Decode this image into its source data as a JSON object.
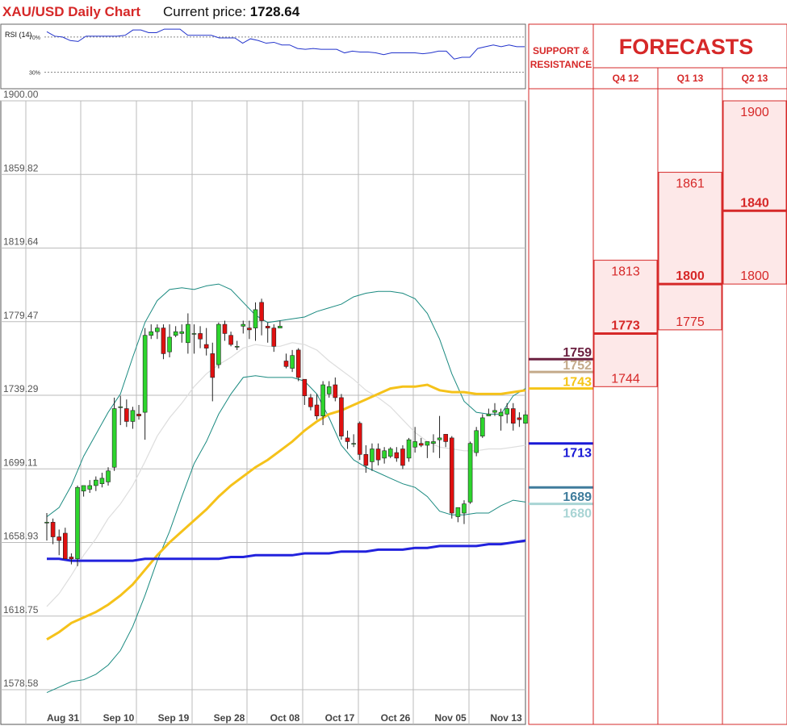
{
  "header": {
    "title": "XAU/USD Daily Chart",
    "price_label": "Current price:",
    "price_value": "1728.64"
  },
  "rsi": {
    "label": "RSI (14)",
    "upper_label": "70%",
    "lower_label": "30%",
    "upper": 70,
    "lower": 30,
    "values": [
      76,
      71,
      70,
      66,
      65,
      71,
      71,
      71,
      71,
      71,
      72,
      78,
      78,
      75,
      75,
      79,
      79,
      79,
      72,
      72,
      72,
      72,
      69,
      69,
      69,
      63,
      68,
      66,
      63,
      64,
      61,
      61,
      57,
      56,
      57,
      56,
      56,
      56,
      52,
      54,
      53,
      53,
      52,
      50,
      52,
      52,
      52,
      52,
      51,
      52,
      54,
      54,
      45,
      47,
      47,
      57,
      59,
      61,
      59,
      61,
      59,
      59
    ]
  },
  "chart_data": {
    "type": "candlestick",
    "title": "XAU/USD Daily Chart",
    "xlabel": "",
    "ylabel": "",
    "ylim": [
      1578.58,
      1900.0
    ],
    "y_ticks": [
      "1900.00",
      "1859.82",
      "1819.64",
      "1779.47",
      "1739.29",
      "1699.11",
      "1658.93",
      "1618.75",
      "1578.58"
    ],
    "x_ticks": [
      "Aug 31",
      "Sep 10",
      "Sep 19",
      "Sep 28",
      "Oct 08",
      "Oct 17",
      "Oct 26",
      "Nov 05",
      "Nov 13"
    ],
    "grid": true,
    "candles": [
      {
        "o": 1670,
        "h": 1675,
        "l": 1660,
        "c": 1670
      },
      {
        "o": 1670,
        "h": 1672,
        "l": 1658,
        "c": 1662
      },
      {
        "o": 1662,
        "h": 1666,
        "l": 1652,
        "c": 1660
      },
      {
        "o": 1664,
        "h": 1667,
        "l": 1650,
        "c": 1650
      },
      {
        "o": 1651,
        "h": 1653,
        "l": 1647,
        "c": 1650
      },
      {
        "o": 1650,
        "h": 1690,
        "l": 1646,
        "c": 1689
      },
      {
        "o": 1687,
        "h": 1690,
        "l": 1684,
        "c": 1690
      },
      {
        "o": 1688,
        "h": 1693,
        "l": 1686,
        "c": 1690
      },
      {
        "o": 1690,
        "h": 1695,
        "l": 1687,
        "c": 1693
      },
      {
        "o": 1691,
        "h": 1697,
        "l": 1689,
        "c": 1694
      },
      {
        "o": 1692,
        "h": 1700,
        "l": 1690,
        "c": 1698
      },
      {
        "o": 1700,
        "h": 1738,
        "l": 1698,
        "c": 1732
      },
      {
        "o": 1733,
        "h": 1739,
        "l": 1723,
        "c": 1733
      },
      {
        "o": 1732,
        "h": 1737,
        "l": 1722,
        "c": 1725
      },
      {
        "o": 1725,
        "h": 1733,
        "l": 1721,
        "c": 1731
      },
      {
        "o": 1729,
        "h": 1734,
        "l": 1726,
        "c": 1728
      },
      {
        "o": 1730,
        "h": 1776,
        "l": 1715,
        "c": 1772
      },
      {
        "o": 1772,
        "h": 1778,
        "l": 1770,
        "c": 1774
      },
      {
        "o": 1774,
        "h": 1778,
        "l": 1770,
        "c": 1776
      },
      {
        "o": 1776,
        "h": 1778,
        "l": 1759,
        "c": 1762
      },
      {
        "o": 1763,
        "h": 1778,
        "l": 1760,
        "c": 1771
      },
      {
        "o": 1772,
        "h": 1777,
        "l": 1771,
        "c": 1774
      },
      {
        "o": 1773,
        "h": 1778,
        "l": 1768,
        "c": 1774
      },
      {
        "o": 1768,
        "h": 1784,
        "l": 1762,
        "c": 1778
      },
      {
        "o": 1773,
        "h": 1778,
        "l": 1762,
        "c": 1773
      },
      {
        "o": 1773,
        "h": 1777,
        "l": 1765,
        "c": 1770
      },
      {
        "o": 1767,
        "h": 1776,
        "l": 1761,
        "c": 1765
      },
      {
        "o": 1762,
        "h": 1768,
        "l": 1736,
        "c": 1749
      },
      {
        "o": 1756,
        "h": 1779,
        "l": 1754,
        "c": 1778
      },
      {
        "o": 1778,
        "h": 1780,
        "l": 1769,
        "c": 1773
      },
      {
        "o": 1772,
        "h": 1774,
        "l": 1766,
        "c": 1767
      },
      {
        "o": 1766,
        "h": 1769,
        "l": 1764,
        "c": 1766
      },
      {
        "o": 1777,
        "h": 1780,
        "l": 1773,
        "c": 1778
      },
      {
        "o": 1776,
        "h": 1780,
        "l": 1770,
        "c": 1775
      },
      {
        "o": 1776,
        "h": 1790,
        "l": 1769,
        "c": 1786
      },
      {
        "o": 1790,
        "h": 1792,
        "l": 1772,
        "c": 1780
      },
      {
        "o": 1777,
        "h": 1779,
        "l": 1768,
        "c": 1776
      },
      {
        "o": 1776,
        "h": 1778,
        "l": 1763,
        "c": 1766
      },
      {
        "o": 1776,
        "h": 1780,
        "l": 1776,
        "c": 1777
      },
      {
        "o": 1758,
        "h": 1762,
        "l": 1754,
        "c": 1755
      },
      {
        "o": 1754,
        "h": 1764,
        "l": 1752,
        "c": 1761
      },
      {
        "o": 1764,
        "h": 1765,
        "l": 1747,
        "c": 1749
      },
      {
        "o": 1748,
        "h": 1748,
        "l": 1734,
        "c": 1739
      },
      {
        "o": 1738,
        "h": 1740,
        "l": 1731,
        "c": 1733
      },
      {
        "o": 1734,
        "h": 1740,
        "l": 1726,
        "c": 1728
      },
      {
        "o": 1728,
        "h": 1747,
        "l": 1723,
        "c": 1745
      },
      {
        "o": 1740,
        "h": 1747,
        "l": 1738,
        "c": 1744
      },
      {
        "o": 1745,
        "h": 1749,
        "l": 1736,
        "c": 1738
      },
      {
        "o": 1738,
        "h": 1740,
        "l": 1715,
        "c": 1717
      },
      {
        "o": 1716,
        "h": 1720,
        "l": 1710,
        "c": 1714
      },
      {
        "o": 1713,
        "h": 1718,
        "l": 1711,
        "c": 1713
      },
      {
        "o": 1724,
        "h": 1725,
        "l": 1704,
        "c": 1707
      },
      {
        "o": 1707,
        "h": 1712,
        "l": 1697,
        "c": 1701
      },
      {
        "o": 1703,
        "h": 1713,
        "l": 1698,
        "c": 1710
      },
      {
        "o": 1710,
        "h": 1713,
        "l": 1701,
        "c": 1704
      },
      {
        "o": 1705,
        "h": 1711,
        "l": 1702,
        "c": 1709
      },
      {
        "o": 1706,
        "h": 1711,
        "l": 1705,
        "c": 1710
      },
      {
        "o": 1708,
        "h": 1711,
        "l": 1703,
        "c": 1705
      },
      {
        "o": 1710,
        "h": 1712,
        "l": 1699,
        "c": 1701
      },
      {
        "o": 1705,
        "h": 1716,
        "l": 1703,
        "c": 1715
      },
      {
        "o": 1711,
        "h": 1722,
        "l": 1708,
        "c": 1714
      },
      {
        "o": 1713,
        "h": 1716,
        "l": 1711,
        "c": 1712
      },
      {
        "o": 1712,
        "h": 1713,
        "l": 1705,
        "c": 1714
      },
      {
        "o": 1713,
        "h": 1718,
        "l": 1708,
        "c": 1714
      },
      {
        "o": 1715,
        "h": 1728,
        "l": 1705,
        "c": 1716
      },
      {
        "o": 1718,
        "h": 1716,
        "l": 1711,
        "c": 1714
      },
      {
        "o": 1716,
        "h": 1717,
        "l": 1672,
        "c": 1675
      },
      {
        "o": 1673,
        "h": 1678,
        "l": 1670,
        "c": 1678
      },
      {
        "o": 1675,
        "h": 1682,
        "l": 1669,
        "c": 1680
      },
      {
        "o": 1681,
        "h": 1714,
        "l": 1680,
        "c": 1713
      },
      {
        "o": 1708,
        "h": 1722,
        "l": 1706,
        "c": 1720
      },
      {
        "o": 1717,
        "h": 1729,
        "l": 1716,
        "c": 1727
      },
      {
        "o": 1728,
        "h": 1732,
        "l": 1728,
        "c": 1729
      },
      {
        "o": 1730,
        "h": 1735,
        "l": 1728,
        "c": 1731
      },
      {
        "o": 1728,
        "h": 1732,
        "l": 1720,
        "c": 1730
      },
      {
        "o": 1729,
        "h": 1735,
        "l": 1724,
        "c": 1732
      },
      {
        "o": 1732,
        "h": 1735,
        "l": 1720,
        "c": 1724
      },
      {
        "o": 1727,
        "h": 1730,
        "l": 1722,
        "c": 1726
      },
      {
        "o": 1724,
        "h": 1731,
        "l": 1725,
        "c": 1728.64
      }
    ],
    "bollinger_upper": [
      1673,
      1678,
      1690,
      1706,
      1718,
      1730,
      1740,
      1760,
      1779,
      1791,
      1797,
      1798,
      1797,
      1799,
      1800,
      1797,
      1790,
      1783,
      1779,
      1780,
      1781,
      1782,
      1785,
      1787,
      1789,
      1793,
      1795,
      1796,
      1796,
      1795,
      1792,
      1784,
      1770,
      1751,
      1736,
      1730,
      1729,
      1729,
      1739,
      1743
    ],
    "bollinger_middle": [
      1624,
      1631,
      1641,
      1652,
      1661,
      1672,
      1680,
      1690,
      1703,
      1717,
      1727,
      1735,
      1744,
      1751,
      1756,
      1760,
      1765,
      1767,
      1766,
      1766,
      1768,
      1767,
      1764,
      1758,
      1753,
      1748,
      1742,
      1738,
      1733,
      1726,
      1719,
      1714,
      1711,
      1710,
      1709,
      1709,
      1710,
      1710,
      1711,
      1712
    ],
    "bollinger_lower": [
      1577,
      1580,
      1583,
      1584,
      1587,
      1592,
      1600,
      1613,
      1630,
      1649,
      1665,
      1684,
      1702,
      1714,
      1729,
      1740,
      1749,
      1750,
      1749,
      1749,
      1749,
      1747,
      1740,
      1727,
      1712,
      1704,
      1700,
      1697,
      1694,
      1691,
      1689,
      1684,
      1676,
      1674,
      1674,
      1675,
      1675,
      1679,
      1682,
      1681
    ],
    "ma_50": [
      1606,
      1610,
      1615,
      1618,
      1621,
      1625,
      1630,
      1636,
      1644,
      1652,
      1659,
      1665,
      1671,
      1677,
      1684,
      1690,
      1695,
      1700,
      1704,
      1709,
      1714,
      1720,
      1725,
      1729,
      1731,
      1734,
      1737,
      1740,
      1743,
      1744,
      1744,
      1745,
      1742,
      1741,
      1741,
      1740,
      1740,
      1740,
      1741,
      1742
    ],
    "ma_200": [
      1650,
      1650,
      1649,
      1649,
      1649,
      1649,
      1649,
      1649,
      1650,
      1650,
      1650,
      1650,
      1650,
      1650,
      1650,
      1651,
      1651,
      1652,
      1652,
      1652,
      1652,
      1653,
      1653,
      1653,
      1654,
      1654,
      1654,
      1655,
      1655,
      1655,
      1656,
      1656,
      1657,
      1657,
      1657,
      1657,
      1658,
      1658,
      1659,
      1660
    ]
  },
  "support_resistance": {
    "header": "SUPPORT & RESISTANCE",
    "levels": [
      {
        "label": "1759",
        "value": 1759,
        "color": "#6b2040"
      },
      {
        "label": "1752",
        "value": 1752,
        "color": "#c4aa8a"
      },
      {
        "label": "1743",
        "value": 1743,
        "color": "#f5c518"
      },
      {
        "label": "1713",
        "value": 1713,
        "color": "#1a1ad6"
      },
      {
        "label": "1689",
        "value": 1689,
        "color": "#3f7c9c"
      },
      {
        "label": "1680",
        "value": 1680,
        "color": "#a8d4d4"
      }
    ]
  },
  "forecasts": {
    "title": "FORECASTS",
    "columns": [
      {
        "label": "Q4 12",
        "low": 1744,
        "mid": 1773,
        "high": 1813
      },
      {
        "label": "Q1 13",
        "low": 1775,
        "mid": 1800,
        "high": 1861
      },
      {
        "label": "Q2 13",
        "low": 1800,
        "mid": 1840,
        "high": 1900
      }
    ]
  },
  "colors": {
    "accent_red": "#d62828",
    "candle_up": "#2dd52d",
    "candle_down": "#e01010",
    "bollinger": "#1a8a80",
    "ma_50": "#f5c21a",
    "ma_200": "#2222dd",
    "rsi_line": "#2233cc",
    "forecast_fill": "#fde8e8"
  }
}
